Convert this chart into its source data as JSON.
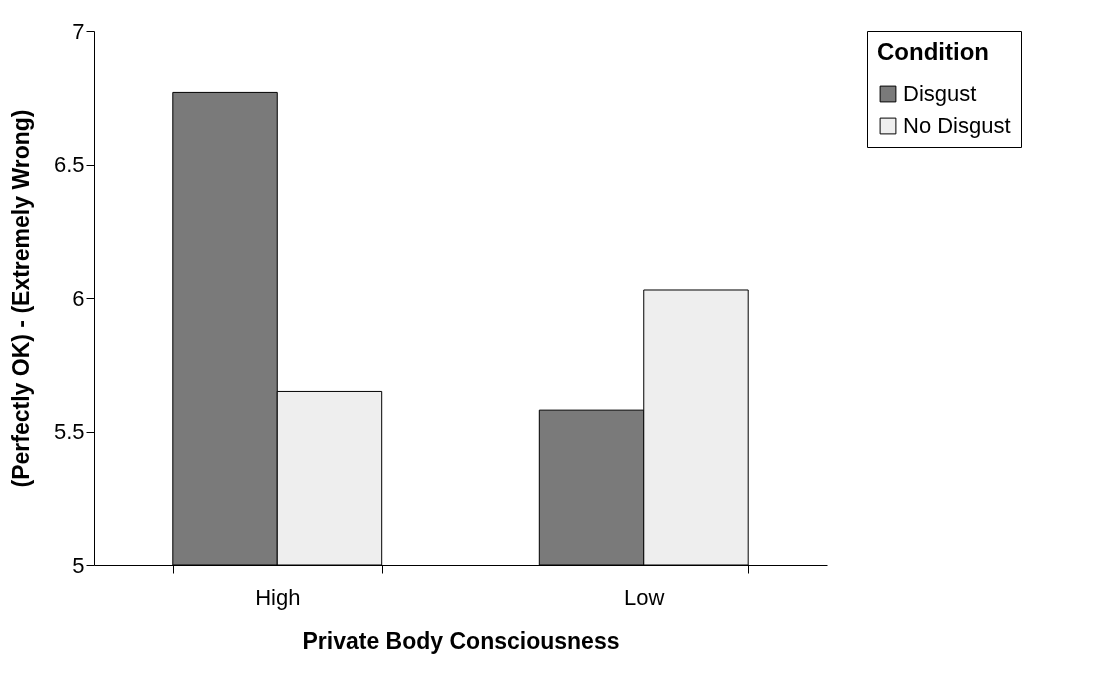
{
  "chart_data": {
    "type": "bar",
    "xlabel": "Private Body Consciousness",
    "ylabel": "(Perfectly OK) - (Extremely Wrong)",
    "legend_title": "Condition",
    "legend": "right",
    "categories": [
      "High",
      "Low"
    ],
    "series": [
      {
        "name": "Disgust",
        "color": "#7a7a7a",
        "values": [
          6.77,
          5.58
        ]
      },
      {
        "name": "No Disgust",
        "color": "#eeeeee",
        "values": [
          5.65,
          6.03
        ]
      }
    ],
    "ylim": [
      5,
      7
    ],
    "yticks": [
      5,
      5.5,
      6,
      6.5,
      7
    ]
  }
}
